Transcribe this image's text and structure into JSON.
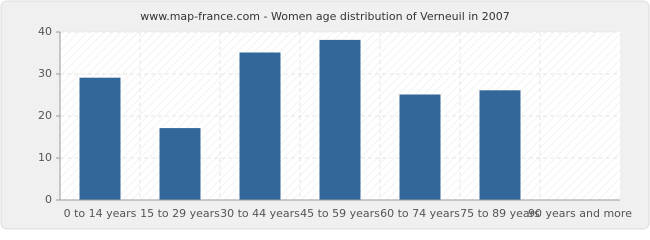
{
  "chart_data": {
    "type": "bar",
    "title": "www.map-france.com - Women age distribution of Verneuil in 2007",
    "categories": [
      "0 to 14 years",
      "15 to 29 years",
      "30 to 44 years",
      "45 to 59 years",
      "60 to 74 years",
      "75 to 89 years",
      "90 years and more"
    ],
    "values": [
      29,
      17,
      35,
      38,
      25,
      26,
      0
    ],
    "color": "#336699",
    "ylim": [
      0,
      40
    ],
    "yticks": [
      0,
      10,
      20,
      30,
      40
    ],
    "grid": true
  }
}
